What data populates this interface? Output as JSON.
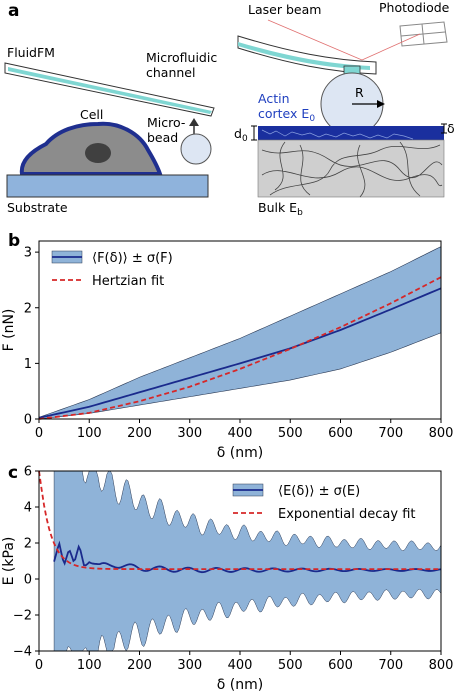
{
  "panel_a": {
    "letter": "a",
    "fluidfm": "FluidFM",
    "microfluidic_line1": "Microfluidic",
    "microfluidic_line2": "channel",
    "cell": "Cell",
    "microbead_line1": "Micro-",
    "microbead_line2": "bead",
    "substrate": "Substrate",
    "laser_beam": "Laser beam",
    "photodiode": "Photodiode",
    "actin_line1": "Actin",
    "actin_line2": "cortex E",
    "actin_sub": "0",
    "radius": "R",
    "d0": "d",
    "d0_sub": "0",
    "delta": "δ",
    "bulk": "Bulk  E",
    "bulk_sub": "b",
    "colors": {
      "substrate": "#8fb3dc",
      "cell_fill": "#8c8c8c",
      "cell_edge": "#1f2f8f",
      "channel": "#7fd6d2",
      "cortex": "#1a2f9e",
      "bulk": "#cfcfcf",
      "bead": "#dde6f3",
      "actin_text": "#1f3fbf"
    }
  },
  "chart_data": [
    {
      "panel": "b",
      "type": "line",
      "xlabel": "δ (nm)",
      "ylabel": "F (nN)",
      "xlim": [
        0,
        800
      ],
      "ylim": [
        0,
        3.2
      ],
      "xticks": [
        "0",
        "100",
        "200",
        "300",
        "400",
        "500",
        "600",
        "700",
        "800"
      ],
      "yticks": [
        "0",
        "1",
        "2",
        "3"
      ],
      "grid": false,
      "legend_position": "top-left",
      "series": [
        {
          "name": "⟨F(δ)⟩ ± σ(F)",
          "color": "#1a2a8c",
          "band_color": "#8fb3d8",
          "x": [
            0,
            100,
            200,
            300,
            400,
            500,
            600,
            700,
            800
          ],
          "y": [
            0.02,
            0.22,
            0.48,
            0.74,
            1.0,
            1.27,
            1.6,
            1.97,
            2.35
          ],
          "y_low": [
            0.0,
            0.1,
            0.25,
            0.4,
            0.55,
            0.7,
            0.9,
            1.2,
            1.55
          ],
          "y_high": [
            0.03,
            0.35,
            0.75,
            1.1,
            1.45,
            1.85,
            2.25,
            2.65,
            3.1
          ]
        },
        {
          "name": "Hertzian fit",
          "color": "#d62728",
          "style": "dashed",
          "x": [
            0,
            100,
            200,
            300,
            400,
            500,
            600,
            700,
            800
          ],
          "y": [
            0.0,
            0.11,
            0.32,
            0.58,
            0.9,
            1.26,
            1.65,
            2.08,
            2.55
          ]
        }
      ]
    },
    {
      "panel": "c",
      "type": "line",
      "xlabel": "δ (nm)",
      "ylabel": "E (kPa)",
      "xlim": [
        0,
        800
      ],
      "ylim": [
        -4,
        6
      ],
      "xticks": [
        "0",
        "100",
        "200",
        "300",
        "400",
        "500",
        "600",
        "700",
        "800"
      ],
      "yticks": [
        "−4",
        "−2",
        "0",
        "2",
        "4",
        "6"
      ],
      "grid": false,
      "legend_position": "top-right",
      "series": [
        {
          "name": "⟨E(δ)⟩ ± σ(E)",
          "color": "#1a2a8c",
          "band_color": "#8fb3d8",
          "x": [
            30,
            40,
            50,
            60,
            70,
            80,
            90,
            100,
            120,
            150,
            200,
            300,
            400,
            500,
            600,
            700,
            800
          ],
          "y": [
            1.0,
            2.2,
            0.9,
            1.6,
            0.7,
            1.8,
            0.8,
            1.1,
            0.7,
            0.8,
            0.6,
            0.5,
            0.5,
            0.5,
            0.5,
            0.5,
            0.5
          ],
          "band_half_width_start": 6.0,
          "band_half_width_end": 1.2
        },
        {
          "name": "Exponential decay fit",
          "color": "#d62728",
          "style": "dashed",
          "amplitude": 5.6,
          "decay_length_nm": 22,
          "offset": 0.55
        }
      ]
    }
  ]
}
